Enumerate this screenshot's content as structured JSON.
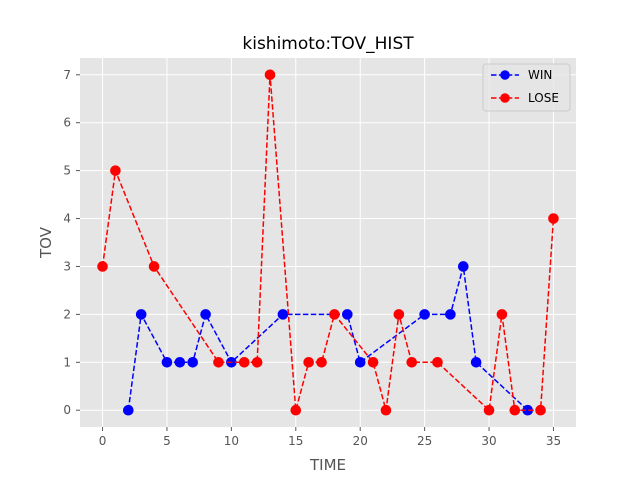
{
  "chart_data": {
    "type": "line",
    "title": "kishimoto:TOV_HIST",
    "xlabel": "TIME",
    "ylabel": "TOV",
    "xlim": [
      -1.75,
      36.75
    ],
    "ylim": [
      -0.35,
      7.35
    ],
    "xticks": [
      0,
      5,
      10,
      15,
      20,
      25,
      30,
      35
    ],
    "yticks": [
      0,
      1,
      2,
      3,
      4,
      5,
      6,
      7
    ],
    "grid": true,
    "legend_position": "top-right",
    "series": [
      {
        "name": "WIN",
        "color": "#0000ff",
        "line_style": "dashed",
        "marker": "circle",
        "x": [
          2,
          3,
          5,
          6,
          7,
          8,
          10,
          14,
          19,
          20,
          25,
          27,
          28,
          29,
          33
        ],
        "y": [
          0,
          2,
          1,
          1,
          1,
          2,
          1,
          2,
          2,
          1,
          2,
          2,
          3,
          1,
          0
        ]
      },
      {
        "name": "LOSE",
        "color": "#ff0000",
        "line_style": "dashed",
        "marker": "circle",
        "x": [
          0,
          1,
          4,
          9,
          11,
          12,
          13,
          15,
          16,
          17,
          18,
          21,
          22,
          23,
          24,
          26,
          30,
          31,
          32,
          34,
          35
        ],
        "y": [
          3,
          5,
          3,
          1,
          1,
          1,
          7,
          0,
          1,
          1,
          2,
          1,
          0,
          2,
          1,
          1,
          0,
          2,
          0,
          0,
          4
        ]
      }
    ]
  }
}
